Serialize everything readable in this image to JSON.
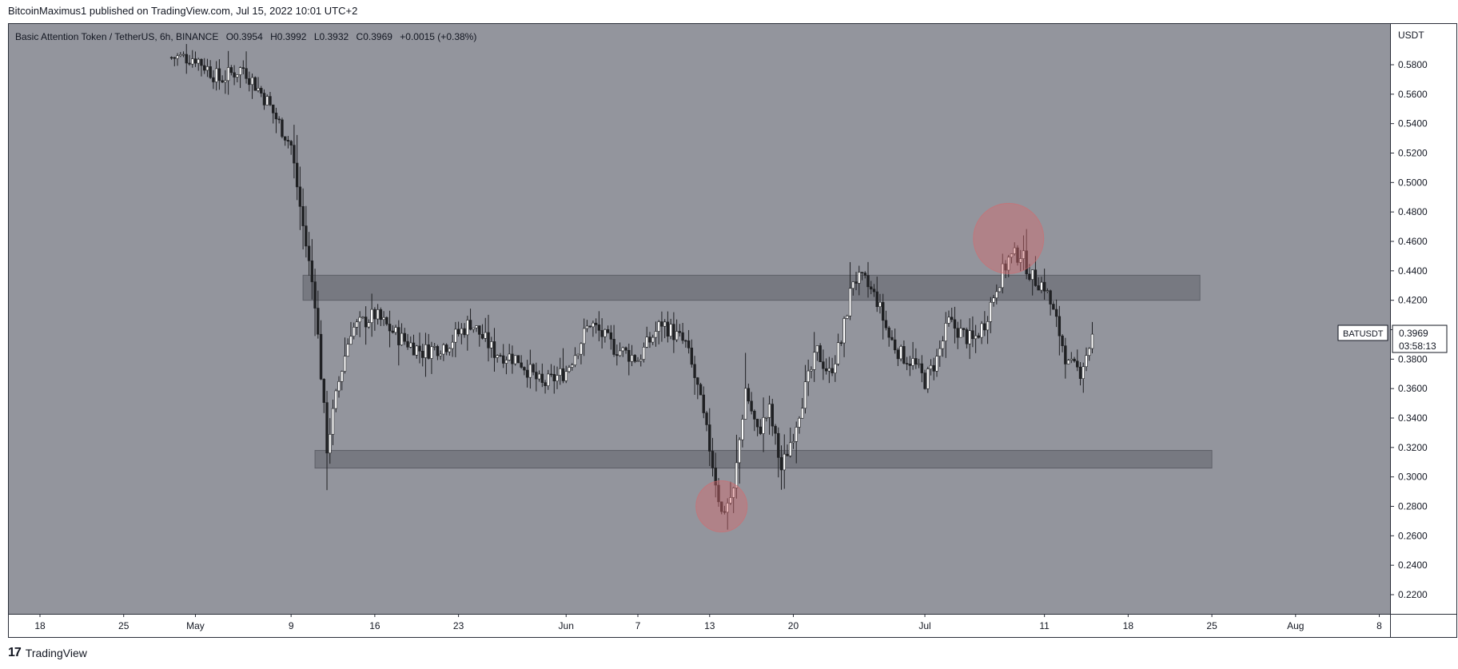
{
  "header": {
    "publisher_line": "BitcoinMaximus1 published on TradingView.com, Jul 15, 2022 10:01 UTC+2"
  },
  "footer": {
    "brand": "TradingView",
    "logo_glyph": "17"
  },
  "legend": {
    "symbol_name": "Basic Attention Token / TetherUS, 6h, BINANCE",
    "o_label": "O",
    "o_value": "0.3954",
    "h_label": "H",
    "h_value": "0.3992",
    "l_label": "L",
    "l_value": "0.3932",
    "c_label": "C",
    "c_value": "0.3969",
    "change": "+0.0015 (+0.38%)"
  },
  "colors": {
    "chart_bg": "#93959d",
    "frame": "#2a2e39",
    "zone": "#6e7078",
    "circle": "#d46a6e",
    "candle": "#1f2023",
    "axis_text": "#131722"
  },
  "chart_data": {
    "type": "candlestick",
    "y_axis_unit": "USDT",
    "ylim": [
      0.2,
      0.6
    ],
    "yticks": [
      0.22,
      0.24,
      0.26,
      0.28,
      0.3,
      0.32,
      0.34,
      0.36,
      0.38,
      0.4,
      0.42,
      0.44,
      0.46,
      0.48,
      0.5,
      0.52,
      0.54,
      0.56,
      0.58
    ],
    "ytick_labels": [
      "0.2200",
      "0.2400",
      "0.2600",
      "0.2800",
      "0.3000",
      "0.3200",
      "0.3400",
      "0.3600",
      "0.3800",
      "0.4000",
      "0.4200",
      "0.4400",
      "0.4600",
      "0.4800",
      "0.5000",
      "0.5200",
      "0.5400",
      "0.5600",
      "0.5800"
    ],
    "x_axis_ticks": [
      {
        "label": "18",
        "date": "2022-04-18"
      },
      {
        "label": "25",
        "date": "2022-04-25"
      },
      {
        "label": "May",
        "date": "2022-05-01"
      },
      {
        "label": "9",
        "date": "2022-05-09"
      },
      {
        "label": "16",
        "date": "2022-05-16"
      },
      {
        "label": "23",
        "date": "2022-05-23"
      },
      {
        "label": "Jun",
        "date": "2022-06-01"
      },
      {
        "label": "7",
        "date": "2022-06-07"
      },
      {
        "label": "13",
        "date": "2022-06-13"
      },
      {
        "label": "20",
        "date": "2022-06-20"
      },
      {
        "label": "Jul",
        "date": "2022-07-01"
      },
      {
        "label": "11",
        "date": "2022-07-11"
      },
      {
        "label": "18",
        "date": "2022-07-18"
      },
      {
        "label": "25",
        "date": "2022-07-25"
      },
      {
        "label": "Aug",
        "date": "2022-08-01"
      },
      {
        "label": "8",
        "date": "2022-08-08"
      }
    ],
    "price_path": [
      [
        "2022-05-01",
        0.585
      ],
      [
        "2022-05-03",
        0.57
      ],
      [
        "2022-05-05",
        0.578
      ],
      [
        "2022-05-07",
        0.555
      ],
      [
        "2022-05-09",
        0.525
      ],
      [
        "2022-05-10",
        0.47
      ],
      [
        "2022-05-11",
        0.42
      ],
      [
        "2022-05-12",
        0.32
      ],
      [
        "2022-05-13",
        0.365
      ],
      [
        "2022-05-14",
        0.4
      ],
      [
        "2022-05-16",
        0.41
      ],
      [
        "2022-05-18",
        0.395
      ],
      [
        "2022-05-20",
        0.385
      ],
      [
        "2022-05-22",
        0.39
      ],
      [
        "2022-05-24",
        0.405
      ],
      [
        "2022-05-26",
        0.385
      ],
      [
        "2022-05-28",
        0.38
      ],
      [
        "2022-05-30",
        0.362
      ],
      [
        "2022-06-01",
        0.372
      ],
      [
        "2022-06-03",
        0.405
      ],
      [
        "2022-06-05",
        0.388
      ],
      [
        "2022-06-07",
        0.38
      ],
      [
        "2022-06-09",
        0.405
      ],
      [
        "2022-06-11",
        0.39
      ],
      [
        "2022-06-12",
        0.36
      ],
      [
        "2022-06-13",
        0.32
      ],
      [
        "2022-06-14",
        0.275
      ],
      [
        "2022-06-15",
        0.29
      ],
      [
        "2022-06-16",
        0.36
      ],
      [
        "2022-06-17",
        0.33
      ],
      [
        "2022-06-18",
        0.345
      ],
      [
        "2022-06-19",
        0.305
      ],
      [
        "2022-06-20",
        0.33
      ],
      [
        "2022-06-21",
        0.36
      ],
      [
        "2022-06-22",
        0.385
      ],
      [
        "2022-06-23",
        0.37
      ],
      [
        "2022-06-24",
        0.392
      ],
      [
        "2022-06-25",
        0.435
      ],
      [
        "2022-06-26",
        0.432
      ],
      [
        "2022-06-27",
        0.42
      ],
      [
        "2022-06-28",
        0.395
      ],
      [
        "2022-06-29",
        0.383
      ],
      [
        "2022-06-30",
        0.378
      ],
      [
        "2022-07-01",
        0.365
      ],
      [
        "2022-07-02",
        0.38
      ],
      [
        "2022-07-03",
        0.405
      ],
      [
        "2022-07-04",
        0.398
      ],
      [
        "2022-07-05",
        0.392
      ],
      [
        "2022-07-06",
        0.405
      ],
      [
        "2022-07-07",
        0.43
      ],
      [
        "2022-07-08",
        0.448
      ],
      [
        "2022-07-09",
        0.452
      ],
      [
        "2022-07-10",
        0.435
      ],
      [
        "2022-07-11",
        0.43
      ],
      [
        "2022-07-12",
        0.405
      ],
      [
        "2022-07-13",
        0.375
      ],
      [
        "2022-07-14",
        0.372
      ],
      [
        "2022-07-15",
        0.395
      ]
    ],
    "last_price_label": {
      "symbol": "BATUSDT",
      "price": "0.3969",
      "countdown": "03:58:13"
    },
    "zones": [
      {
        "type": "resistance",
        "from_date": "2022-05-10",
        "to_date": "2022-07-24",
        "low": 0.42,
        "high": 0.437
      },
      {
        "type": "support",
        "from_date": "2022-05-11",
        "to_date": "2022-07-25",
        "low": 0.306,
        "high": 0.318
      }
    ],
    "circles": [
      {
        "date": "2022-06-14",
        "price": 0.28
      },
      {
        "date": "2022-07-08",
        "price": 0.462
      }
    ]
  }
}
